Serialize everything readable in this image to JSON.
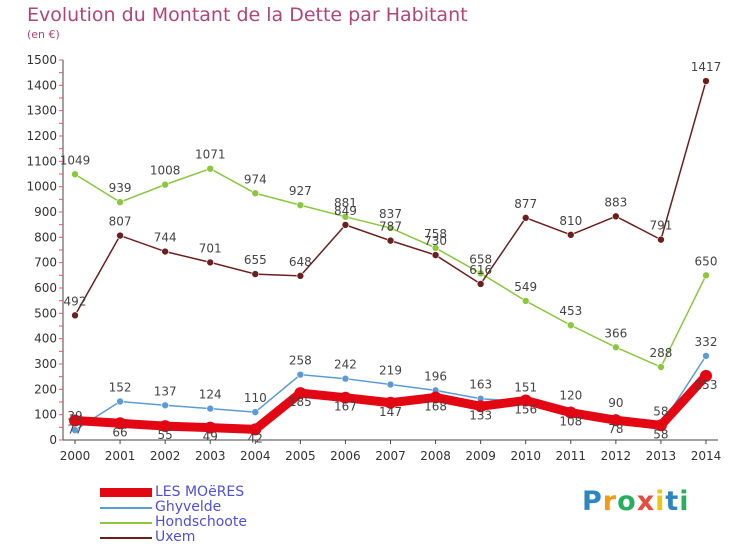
{
  "chart_data": {
    "type": "line",
    "title": "Evolution du Montant de la Dette par Habitant",
    "subtitle": "(en €)",
    "categories": [
      "2000",
      "2001",
      "2002",
      "2003",
      "2004",
      "2005",
      "2006",
      "2007",
      "2008",
      "2009",
      "2010",
      "2011",
      "2012",
      "2013",
      "2014"
    ],
    "ylim": [
      0,
      1500
    ],
    "yticks": [
      0,
      100,
      200,
      300,
      400,
      500,
      600,
      700,
      800,
      900,
      1000,
      1100,
      1200,
      1300,
      1400,
      1500
    ],
    "grid": false,
    "legend_position": "bottom-left",
    "series": [
      {
        "name": "LES MOëRES",
        "color": "#e30613",
        "emphasis": true,
        "values": [
          77,
          66,
          55,
          49,
          42,
          185,
          167,
          147,
          168,
          133,
          156,
          108,
          78,
          58,
          253
        ],
        "labels": [
          "77",
          "66",
          "55",
          "49",
          "42",
          "185",
          "167",
          "147",
          "168",
          "133",
          "156",
          "108",
          "78",
          "58",
          "253"
        ]
      },
      {
        "name": "Ghyvelde",
        "color": "#5b9bd5",
        "emphasis": false,
        "values": [
          39,
          152,
          137,
          124,
          110,
          258,
          242,
          219,
          196,
          163,
          151,
          120,
          90,
          58,
          332
        ],
        "labels": [
          "39",
          "152",
          "137",
          "124",
          "110",
          "258",
          "242",
          "219",
          "196",
          "163",
          "151",
          "120",
          "90",
          "58",
          "332"
        ]
      },
      {
        "name": "Hondschoote",
        "color": "#8cc63f",
        "emphasis": false,
        "values": [
          1049,
          939,
          1008,
          1071,
          974,
          927,
          881,
          837,
          758,
          658,
          549,
          453,
          366,
          288,
          650
        ],
        "labels": [
          "1049",
          "939",
          "1008",
          "1071",
          "974",
          "927",
          "881",
          "837",
          "758",
          "658",
          "549",
          "453",
          "366",
          "288",
          "650"
        ]
      },
      {
        "name": "Uxem",
        "color": "#6b1f1f",
        "emphasis": false,
        "values": [
          492,
          807,
          744,
          701,
          655,
          648,
          849,
          787,
          730,
          616,
          877,
          810,
          883,
          791,
          1417
        ],
        "labels": [
          "492",
          "807",
          "744",
          "701",
          "655",
          "648",
          "849",
          "787",
          "730",
          "616",
          "877",
          "810",
          "883",
          "791",
          "1417"
        ]
      }
    ]
  },
  "logo": {
    "letters": [
      "P",
      "r",
      "o",
      "x",
      "i",
      "t",
      "i"
    ],
    "colors": [
      "#2e86c1",
      "#f39c12",
      "#27ae60",
      "#e74c3c",
      "#f1c40f",
      "#2e86c1",
      "#27ae60"
    ]
  }
}
